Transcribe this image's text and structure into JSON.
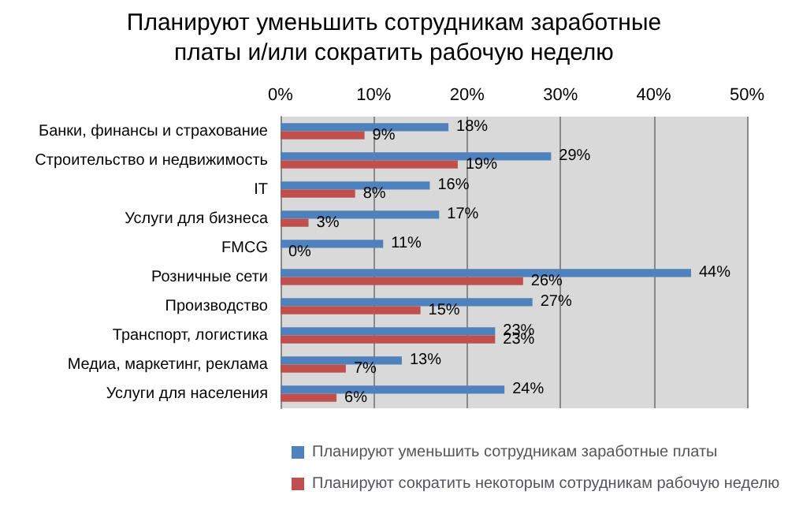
{
  "chart_data": {
    "type": "bar",
    "orientation": "horizontal",
    "title": "Планируют уменьшить сотрудникам заработные платы и/или сократить рабочую неделю",
    "categories": [
      "Банки, финансы и страхование",
      "Строительство и недвижимость",
      "IT",
      "Услуги для бизнеса",
      "FMCG",
      "Розничные сети",
      "Производство",
      "Транспорт, логистика",
      "Медиа, маркетинг, реклама",
      "Услуги для населения"
    ],
    "series": [
      {
        "name": "Планируют уменьшить сотрудникам заработные платы",
        "color": "#4f81bd",
        "values": [
          18,
          29,
          16,
          17,
          11,
          44,
          27,
          23,
          13,
          24
        ],
        "value_labels": [
          "18%",
          "29%",
          "16%",
          "17%",
          "11%",
          "44%",
          "27%",
          "23%",
          "13%",
          "24%"
        ]
      },
      {
        "name": "Планируют сократить некоторым сотрудникам рабочую неделю",
        "color": "#c0504d",
        "values": [
          9,
          19,
          8,
          3,
          0,
          26,
          15,
          23,
          7,
          6
        ],
        "value_labels": [
          "9%",
          "19%",
          "8%",
          "3%",
          "0%",
          "26%",
          "15%",
          "23%",
          "7%",
          "6%"
        ]
      }
    ],
    "xlim": [
      0,
      50
    ],
    "xticks": [
      {
        "value": 0,
        "label": "0%"
      },
      {
        "value": 10,
        "label": "10%"
      },
      {
        "value": 20,
        "label": "20%"
      },
      {
        "value": 30,
        "label": "30%"
      },
      {
        "value": 40,
        "label": "40%"
      },
      {
        "value": 50,
        "label": "50%"
      }
    ],
    "grid": "x",
    "legend": "bottom"
  }
}
